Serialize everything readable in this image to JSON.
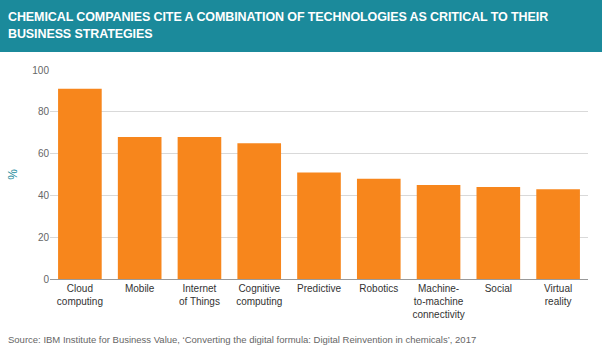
{
  "chart_data": {
    "type": "bar",
    "title": "CHEMICAL COMPANIES CITE A COMBINATION OF TECHNOLOGIES AS CRITICAL TO THEIR BUSINESS STRATEGIES",
    "ylabel": "%",
    "categories": [
      "Cloud computing",
      "Mobile",
      "Internet of Things",
      "Cognitive computing",
      "Predictive",
      "Robotics",
      "Machine-to-machine connectivity",
      "Social",
      "Virtual reality"
    ],
    "values": [
      91,
      68,
      68,
      65,
      51,
      48,
      45,
      44,
      43
    ],
    "color": "#f7861c",
    "ylim": [
      0,
      100
    ],
    "yticks": [
      0,
      20,
      40,
      60,
      80,
      100
    ],
    "grid": true,
    "source": "Source: IBM Institute for Business Value, ‘Converting the digital formula: Digital Reinvention in chemicals’, 2017"
  }
}
